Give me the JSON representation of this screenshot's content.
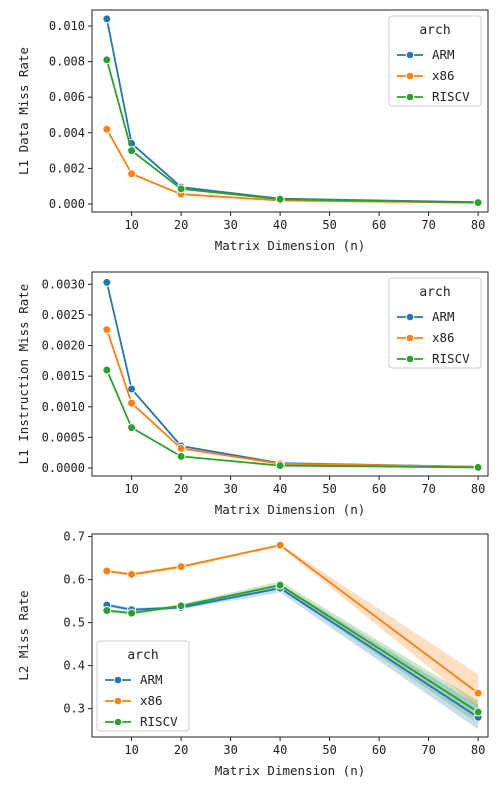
{
  "chart_data": [
    {
      "type": "line",
      "title": "",
      "xlabel": "Matrix Dimension (n)",
      "ylabel": "L1 Data Miss Rate",
      "x": [
        5,
        10,
        20,
        40,
        80
      ],
      "xlim": [
        2,
        82
      ],
      "xticks": [
        10,
        20,
        30,
        40,
        50,
        60,
        70,
        80
      ],
      "xtick_labels": [
        "10",
        "20",
        "30",
        "40",
        "50",
        "60",
        "70",
        "80"
      ],
      "ylim": [
        -0.00045,
        0.0109
      ],
      "yticks": [
        0,
        0.002,
        0.004,
        0.006,
        0.008,
        0.01
      ],
      "ytick_labels": [
        "0.000",
        "0.002",
        "0.004",
        "0.006",
        "0.008",
        "0.010"
      ],
      "grid": false,
      "legend": {
        "title": "arch",
        "placement": "top-right"
      },
      "series": [
        {
          "name": "ARM",
          "color": "#1f77b4",
          "values": [
            0.0104,
            0.0034,
            0.00095,
            0.0003,
            0.0001
          ]
        },
        {
          "name": "x86",
          "color": "#ff7f0e",
          "values": [
            0.0042,
            0.0017,
            0.00055,
            0.0002,
            7e-05
          ]
        },
        {
          "name": "RISCV",
          "color": "#2ca02c",
          "values": [
            0.0081,
            0.003,
            0.00085,
            0.00027,
            8e-05
          ]
        }
      ]
    },
    {
      "type": "line",
      "title": "",
      "xlabel": "Matrix Dimension (n)",
      "ylabel": "L1 Instruction Miss Rate",
      "x": [
        5,
        10,
        20,
        40,
        80
      ],
      "xlim": [
        2,
        82
      ],
      "xticks": [
        10,
        20,
        30,
        40,
        50,
        60,
        70,
        80
      ],
      "xtick_labels": [
        "10",
        "20",
        "30",
        "40",
        "50",
        "60",
        "70",
        "80"
      ],
      "ylim": [
        -0.00013,
        0.0032
      ],
      "yticks": [
        0,
        0.0005,
        0.001,
        0.0015,
        0.002,
        0.0025,
        0.003
      ],
      "ytick_labels": [
        "0.0000",
        "0.0005",
        "0.0010",
        "0.0015",
        "0.0020",
        "0.0025",
        "0.0030"
      ],
      "grid": false,
      "legend": {
        "title": "arch",
        "placement": "top-right"
      },
      "series": [
        {
          "name": "ARM",
          "color": "#1f77b4",
          "values": [
            0.00303,
            0.00129,
            0.00036,
            8e-05,
            2e-05
          ]
        },
        {
          "name": "x86",
          "color": "#ff7f0e",
          "values": [
            0.00226,
            0.00106,
            0.00032,
            7e-05,
            2e-05
          ]
        },
        {
          "name": "RISCV",
          "color": "#2ca02c",
          "values": [
            0.0016,
            0.00066,
            0.00019,
            4e-05,
            1e-05
          ]
        }
      ]
    },
    {
      "type": "line",
      "title": "",
      "xlabel": "Matrix Dimension (n)",
      "ylabel": "L2 Miss Rate",
      "x": [
        5,
        10,
        20,
        40,
        80
      ],
      "xlim": [
        2,
        82
      ],
      "xticks": [
        10,
        20,
        30,
        40,
        50,
        60,
        70,
        80
      ],
      "xtick_labels": [
        "10",
        "20",
        "30",
        "40",
        "50",
        "60",
        "70",
        "80"
      ],
      "ylim": [
        0.234,
        0.706
      ],
      "yticks": [
        0.3,
        0.4,
        0.5,
        0.6,
        0.7
      ],
      "ytick_labels": [
        "0.3",
        "0.4",
        "0.5",
        "0.6",
        "0.7"
      ],
      "grid": false,
      "legend": {
        "title": "arch",
        "placement": "lower-left"
      },
      "series": [
        {
          "name": "ARM",
          "color": "#1f77b4",
          "values": [
            0.541,
            0.53,
            0.535,
            0.58,
            0.28
          ],
          "ci_low": [
            0.537,
            0.526,
            0.531,
            0.57,
            0.252
          ],
          "ci_high": [
            0.545,
            0.534,
            0.539,
            0.59,
            0.308
          ]
        },
        {
          "name": "x86",
          "color": "#ff7f0e",
          "values": [
            0.62,
            0.612,
            0.63,
            0.68,
            0.336
          ],
          "ci_low": [
            0.617,
            0.609,
            0.627,
            0.677,
            0.303
          ],
          "ci_high": [
            0.623,
            0.615,
            0.633,
            0.683,
            0.38
          ]
        },
        {
          "name": "RISCV",
          "color": "#2ca02c",
          "values": [
            0.528,
            0.522,
            0.539,
            0.587,
            0.292
          ],
          "ci_low": [
            0.524,
            0.518,
            0.535,
            0.578,
            0.266
          ],
          "ci_high": [
            0.532,
            0.526,
            0.543,
            0.596,
            0.318
          ]
        }
      ]
    }
  ]
}
